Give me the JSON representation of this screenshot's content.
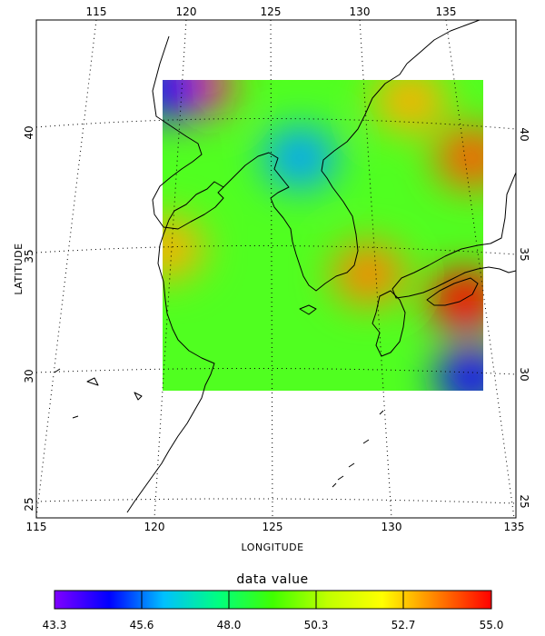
{
  "map": {
    "xlabel": "LONGITUDE",
    "ylabel": "LATITUDE",
    "bottom_ticks": [
      "115",
      "120",
      "125",
      "130",
      "135"
    ],
    "top_ticks": [
      "115",
      "120",
      "125",
      "130",
      "135"
    ],
    "left_ticks": [
      "25",
      "30",
      "35",
      "40"
    ],
    "right_ticks": [
      "25",
      "30",
      "35",
      "40"
    ],
    "data_extent": {
      "lon_min": 120,
      "lon_max": 134,
      "lat_min": 30,
      "lat_max": 42
    },
    "lon_range": [
      115,
      135
    ],
    "lat_range": [
      24.5,
      43
    ]
  },
  "colorbar": {
    "title": "data value",
    "labels": [
      "43.3",
      "45.6",
      "48.0",
      "50.3",
      "52.7",
      "55.0"
    ],
    "stops": [
      "#8000ff",
      "#0000ff",
      "#00c0ff",
      "#00ff80",
      "#40ff00",
      "#c0ff00",
      "#ffff00",
      "#ff8000",
      "#ff0000"
    ]
  },
  "chart_data": {
    "type": "heatmap",
    "title": "",
    "xlabel": "LONGITUDE",
    "ylabel": "LATITUDE",
    "value_range": [
      43.3,
      55.0
    ],
    "hotspots": [
      {
        "lon": 121.5,
        "lat": 41.8,
        "value": 54.5
      },
      {
        "lon": 120.3,
        "lat": 41.7,
        "value": 44.5
      },
      {
        "lon": 126.0,
        "lat": 39.0,
        "value": 46.0
      },
      {
        "lon": 133.5,
        "lat": 39.0,
        "value": 54.0
      },
      {
        "lon": 133.2,
        "lat": 33.5,
        "value": 55.0
      },
      {
        "lon": 129.0,
        "lat": 34.5,
        "value": 53.5
      },
      {
        "lon": 133.5,
        "lat": 30.5,
        "value": 44.5
      },
      {
        "lon": 120.2,
        "lat": 35.5,
        "value": 53.0
      },
      {
        "lon": 130.8,
        "lat": 41.2,
        "value": 53.0
      }
    ]
  }
}
